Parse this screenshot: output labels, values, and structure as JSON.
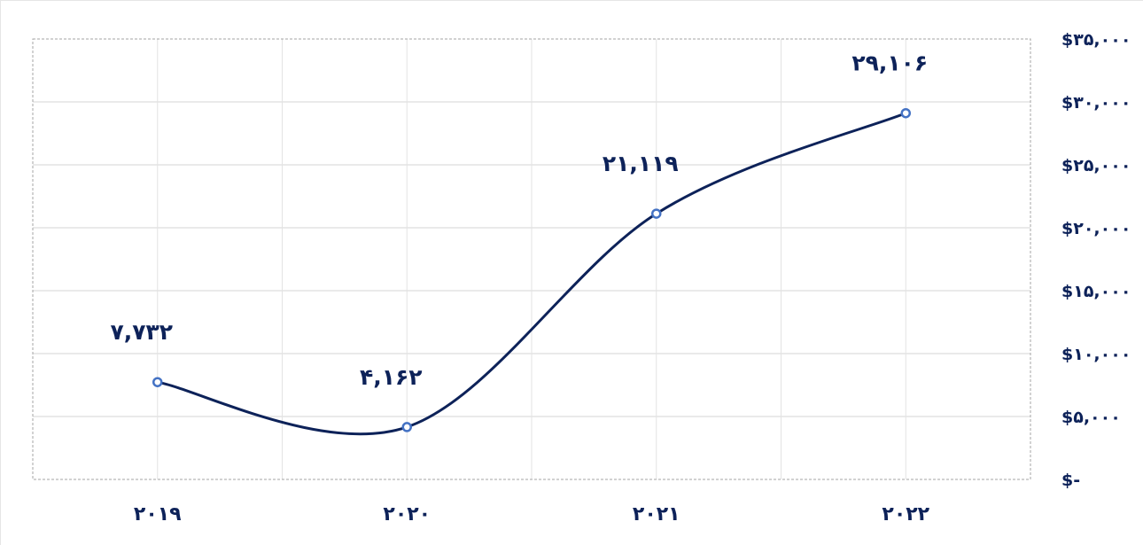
{
  "chart_data": {
    "type": "line",
    "title": "",
    "xlabel": "",
    "ylabel": "",
    "categories": [
      "۲۰۱۹",
      "۲۰۲۰",
      "۲۰۲۱",
      "۲۰۲۲"
    ],
    "series": [
      {
        "values": [
          7732,
          4162,
          21119,
          29106
        ],
        "data_labels": [
          "۷,۷۳۲",
          "۴,۱۶۲",
          "۲۱,۱۱۹",
          "۲۹,۱۰۶"
        ]
      }
    ],
    "ylim": [
      0,
      35000
    ],
    "yticks": [
      0,
      5000,
      10000,
      15000,
      20000,
      25000,
      30000,
      35000
    ],
    "ytick_labels": [
      "$-",
      "$۵,۰۰۰",
      "$۱۰,۰۰۰",
      "$۱۵,۰۰۰",
      "$۲۰,۰۰۰",
      "$۲۵,۰۰۰",
      "$۳۰,۰۰۰",
      "$۳۵,۰۰۰"
    ],
    "y_axis_position": "right",
    "grid": true,
    "smooth": true,
    "legend": "none",
    "colors": {
      "line": "#0d2259",
      "marker_stroke": "#4472c4",
      "marker_fill": "#ffffff",
      "labels": "#0d2259",
      "grid": "#e3e3e3",
      "plot_border": "#a6a6a6"
    }
  }
}
